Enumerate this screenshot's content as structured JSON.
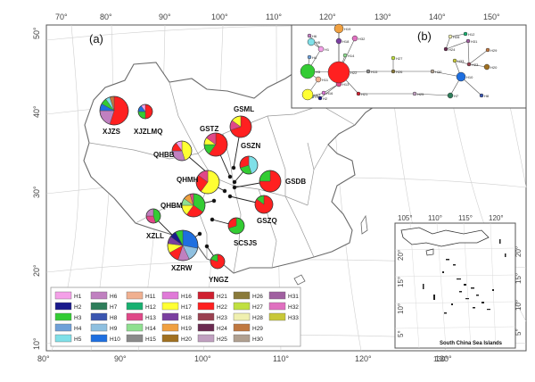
{
  "panel_a_label": "(a)",
  "panel_b_label": "(b)",
  "top_axis": [
    "70°",
    "80°",
    "90°",
    "100°",
    "110°",
    "120°",
    "130°",
    "140°",
    "150°"
  ],
  "bottom_axis": [
    "80°",
    "90°",
    "100°",
    "110°",
    "120°",
    "130°"
  ],
  "left_axis": [
    "50°",
    "40°",
    "30°",
    "20°",
    "10°"
  ],
  "inset_top_axis": [
    "105°",
    "110°",
    "115°",
    "120°"
  ],
  "inset_right_axis": [
    "20°",
    "15°",
    "10°",
    "5°"
  ],
  "inset_left_axis": [
    "20°",
    "15°",
    "10°",
    "5°"
  ],
  "inset_bottom_axis": [
    "130°"
  ],
  "inset_caption": "South China Sea Islands",
  "colors": {
    "H1": "#f4a0e8",
    "H2": "#1a1a8c",
    "H3": "#33cc33",
    "H4": "#6fa0d8",
    "H5": "#7fe0e8",
    "H6": "#c080c0",
    "H7": "#2e7d5a",
    "H8": "#3a55b0",
    "H9": "#8fc0e0",
    "H10": "#1e6fe0",
    "H11": "#f0b090",
    "H12": "#18b070",
    "H13": "#e04888",
    "H14": "#8fe090",
    "H15": "#8a8a8a",
    "H16": "#e07ad8",
    "H17": "#ffff33",
    "H18": "#7a3fa0",
    "H19": "#f0a040",
    "H20": "#a07020",
    "H21": "#d02030",
    "H22": "#ff2020",
    "H23": "#9a4050",
    "H24": "#6a2a50",
    "H25": "#c0a0c0",
    "H26": "#8a7a3a",
    "H27": "#c0e040",
    "H28": "#f0f0b0",
    "H29": "#c07840",
    "H30": "#b0a090",
    "H31": "#a060a0",
    "H32": "#e070c0",
    "H33": "#c8c838"
  },
  "legend": [
    [
      "H1",
      "H6",
      "H11",
      "H16",
      "H21",
      "H26",
      "H31"
    ],
    [
      "H2",
      "H7",
      "H12",
      "H17",
      "H22",
      "H27",
      "H32"
    ],
    [
      "H3",
      "H8",
      "H13",
      "H18",
      "H23",
      "H28",
      "H33"
    ],
    [
      "H4",
      "H9",
      "H14",
      "H19",
      "H24",
      "H29"
    ],
    [
      "H5",
      "H10",
      "H15",
      "H20",
      "H25",
      "H30"
    ]
  ],
  "populations": [
    {
      "name": "XJZS",
      "slices": [
        [
          "H22",
          0.55
        ],
        [
          "H6",
          0.2
        ],
        [
          "H10",
          0.08
        ],
        [
          "H3",
          0.07
        ],
        [
          "H5",
          0.05
        ],
        [
          "H29",
          0.05
        ]
      ]
    },
    {
      "name": "XJZLMQ",
      "slices": [
        [
          "H22",
          0.5
        ],
        [
          "H3",
          0.25
        ],
        [
          "H10",
          0.15
        ],
        [
          "H1",
          0.1
        ]
      ]
    },
    {
      "name": "GSML",
      "slices": [
        [
          "H22",
          0.7
        ],
        [
          "H13",
          0.15
        ],
        [
          "H17",
          0.15
        ]
      ]
    },
    {
      "name": "GSTZ",
      "slices": [
        [
          "H22",
          0.6
        ],
        [
          "H3",
          0.15
        ],
        [
          "H17",
          0.1
        ],
        [
          "H13",
          0.15
        ]
      ]
    },
    {
      "name": "QHBB",
      "slices": [
        [
          "H17",
          0.45
        ],
        [
          "H6",
          0.3
        ],
        [
          "H22",
          0.15
        ],
        [
          "H1",
          0.1
        ]
      ]
    },
    {
      "name": "GSZN",
      "slices": [
        [
          "H5",
          0.45
        ],
        [
          "H3",
          0.25
        ],
        [
          "H22",
          0.3
        ]
      ]
    },
    {
      "name": "QHMH",
      "slices": [
        [
          "H17",
          0.6
        ],
        [
          "H22",
          0.25
        ],
        [
          "H13",
          0.15
        ]
      ]
    },
    {
      "name": "GSDB",
      "slices": [
        [
          "H22",
          0.75
        ],
        [
          "H3",
          0.25
        ]
      ]
    },
    {
      "name": "QHBM",
      "slices": [
        [
          "H3",
          0.35
        ],
        [
          "H22",
          0.25
        ],
        [
          "H17",
          0.15
        ],
        [
          "H14",
          0.1
        ],
        [
          "H19",
          0.1
        ],
        [
          "H13",
          0.05
        ]
      ]
    },
    {
      "name": "GSZQ",
      "slices": [
        [
          "H22",
          0.85
        ],
        [
          "H3",
          0.15
        ]
      ]
    },
    {
      "name": "XZLL",
      "slices": [
        [
          "H3",
          0.45
        ],
        [
          "H13",
          0.3
        ],
        [
          "H6",
          0.25
        ]
      ]
    },
    {
      "name": "SCSJS",
      "slices": [
        [
          "H3",
          0.7
        ],
        [
          "H22",
          0.3
        ]
      ]
    },
    {
      "name": "XZRW",
      "slices": [
        [
          "H10",
          0.28
        ],
        [
          "H9",
          0.15
        ],
        [
          "H6",
          0.12
        ],
        [
          "H22",
          0.12
        ],
        [
          "H17",
          0.1
        ],
        [
          "H18",
          0.08
        ],
        [
          "H2",
          0.07
        ],
        [
          "H3",
          0.08
        ]
      ]
    },
    {
      "name": "YNGZ",
      "slices": [
        [
          "H22",
          0.8
        ],
        [
          "H3",
          0.2
        ]
      ]
    }
  ],
  "network_nodes": [
    "H1",
    "H2",
    "H3",
    "H4",
    "H5",
    "H6",
    "H7",
    "H8",
    "H9",
    "H10",
    "H11",
    "H12",
    "H13",
    "H14",
    "H15",
    "H16",
    "H17",
    "H18",
    "H19",
    "H20",
    "H21",
    "H22",
    "H23",
    "H24",
    "H25",
    "H26",
    "H27",
    "H28",
    "H29",
    "H30",
    "H31",
    "H32",
    "H33"
  ]
}
